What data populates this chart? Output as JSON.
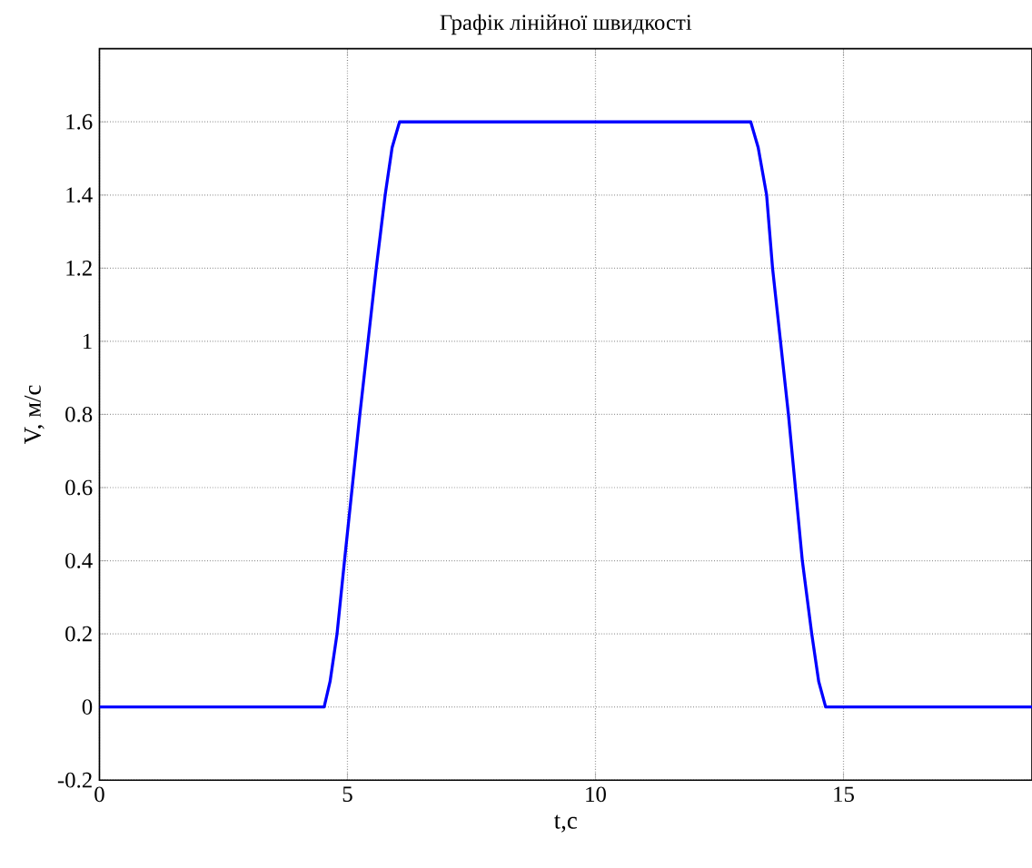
{
  "chart_data": {
    "type": "line",
    "title": "Графік лінійної швидкості",
    "xlabel": "t,c",
    "ylabel": "V, м/с",
    "xlim": [
      0,
      18.8
    ],
    "ylim": [
      -0.2,
      1.8
    ],
    "xticks": [
      0,
      5,
      10,
      15
    ],
    "yticks": [
      -0.2,
      0,
      0.2,
      0.4,
      0.6,
      0.8,
      1,
      1.2,
      1.4,
      1.6
    ],
    "grid": true,
    "marker": "none",
    "line_style": "solid",
    "series": [
      {
        "color": "#0000ff",
        "x": [
          0,
          4.53,
          4.65,
          4.79,
          4.94,
          5.25,
          5.58,
          5.76,
          5.9,
          6.05,
          13.13,
          13.28,
          13.45,
          13.57,
          13.89,
          14.17,
          14.36,
          14.5,
          14.64,
          18.8
        ],
        "values": [
          0,
          0,
          0.07,
          0.2,
          0.4,
          0.8,
          1.2,
          1.4,
          1.53,
          1.6,
          1.6,
          1.53,
          1.4,
          1.2,
          0.8,
          0.4,
          0.2,
          0.07,
          0,
          0
        ]
      }
    ]
  }
}
